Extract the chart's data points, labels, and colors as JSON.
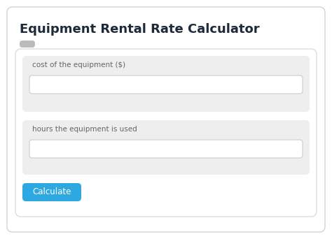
{
  "title": "Equipment Rental Rate Calculator",
  "title_fontsize": 13,
  "title_color": "#1e2a3a",
  "title_fontweight": "bold",
  "bg_color": "#ffffff",
  "card_bg": "#ffffff",
  "card_border": "#d8dee4",
  "field_bg_light": "#eeeeee",
  "input_bg": "#ffffff",
  "input_border": "#cccccc",
  "label1": "cost of the equipment ($)",
  "label2": "hours the equipment is used",
  "label_fontsize": 7.5,
  "label_color": "#666666",
  "button_text": "Calculate",
  "button_color": "#2da8e0",
  "button_text_color": "#ffffff",
  "button_fontsize": 8.5,
  "small_rect_color": "#bbbbbb",
  "outer_border_color": "#d0d4d8"
}
